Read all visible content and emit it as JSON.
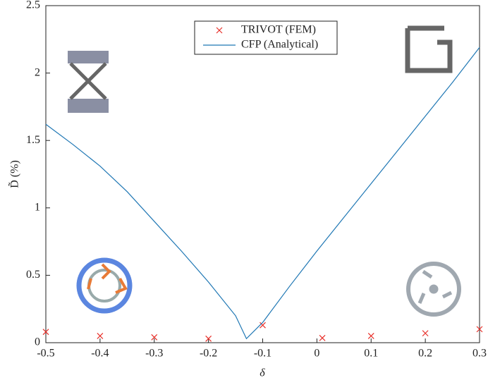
{
  "chart_data": {
    "type": "line",
    "xlabel": "δ",
    "ylabel": "D̃ (%)",
    "xlim": [
      -0.5,
      0.3
    ],
    "xticks": [
      -0.5,
      -0.4,
      -0.3,
      -0.2,
      -0.1,
      0,
      0.1,
      0.2,
      0.3
    ],
    "ylim": [
      0,
      2.5
    ],
    "yticks": [
      0,
      0.5,
      1,
      1.5,
      2,
      2.5
    ],
    "legend": "top",
    "series": [
      {
        "name": "TRIVOT (FEM)",
        "type": "scatter",
        "color": "#e8302a",
        "x": [
          -0.5,
          -0.4,
          -0.3,
          -0.2,
          -0.1,
          0.01,
          0.1,
          0.2,
          0.3
        ],
        "values": [
          0.08,
          0.05,
          0.04,
          0.03,
          0.13,
          0.035,
          0.05,
          0.07,
          0.1
        ]
      },
      {
        "name": "CFP (Analytical)",
        "type": "line",
        "color": "#1f77b4",
        "x": [
          -0.5,
          -0.45,
          -0.4,
          -0.35,
          -0.3,
          -0.25,
          -0.2,
          -0.15,
          -0.13,
          -0.1,
          -0.05,
          0,
          0.05,
          0.1,
          0.15,
          0.2,
          0.25,
          0.3
        ],
        "values": [
          1.62,
          1.47,
          1.31,
          1.12,
          0.9,
          0.68,
          0.45,
          0.2,
          0.03,
          0.15,
          0.42,
          0.68,
          0.93,
          1.18,
          1.43,
          1.68,
          1.93,
          2.19
        ]
      }
    ]
  }
}
